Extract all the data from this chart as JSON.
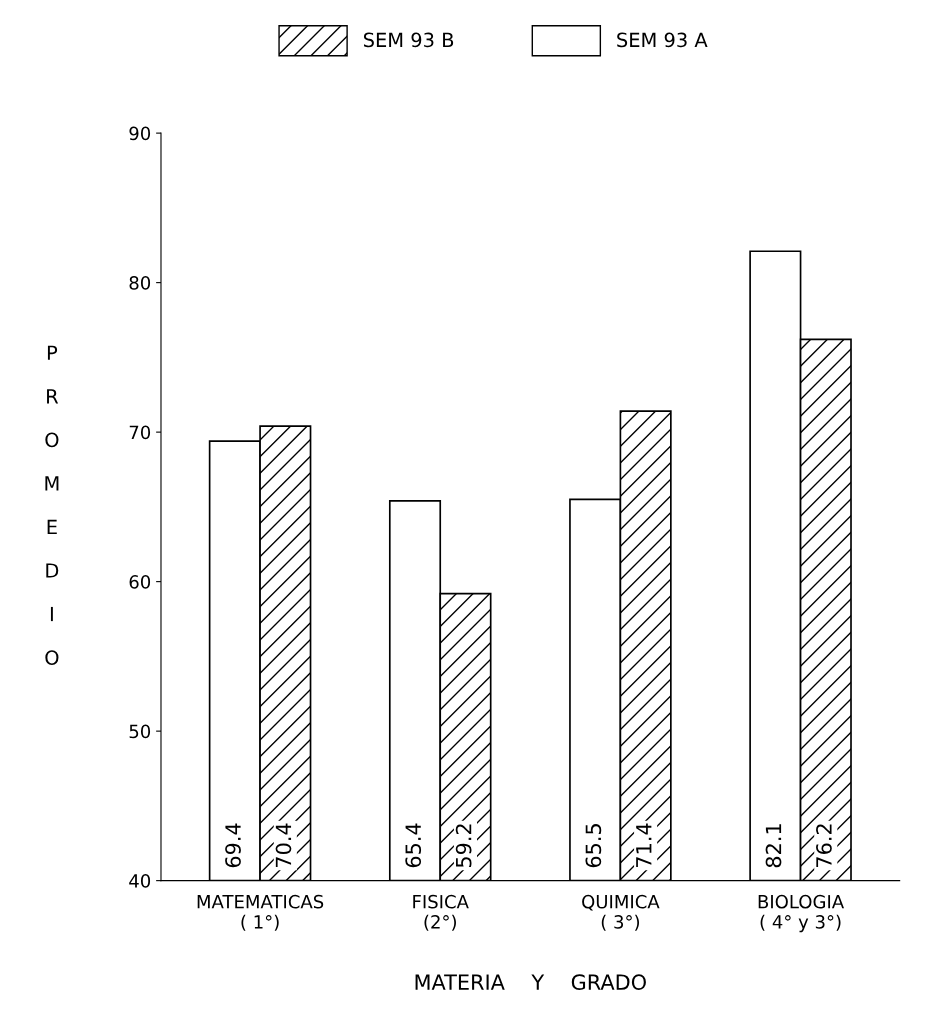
{
  "chart_data": {
    "type": "bar",
    "xlabel": "MATERIA    Y    GRADO",
    "ylabel": "PROMEDIO",
    "categories": [
      "MATEMATICAS\n( 1°)",
      "FISICA\n(2°)",
      "QUIMICA\n( 3°)",
      "BIOLOGIA\n( 4° y 3°)"
    ],
    "series": [
      {
        "name": "SEM 93 A",
        "color": "#ffffff",
        "values": [
          69.4,
          65.4,
          65.5,
          82.1
        ]
      },
      {
        "name": "SEM 93 B",
        "color": "#000000",
        "values": [
          70.4,
          59.2,
          71.4,
          76.2
        ]
      }
    ],
    "ylim": [
      40,
      90
    ],
    "yticks": [
      40,
      50,
      60,
      70,
      80,
      90
    ],
    "grid": false,
    "legend": "top",
    "data_labels": true
  }
}
